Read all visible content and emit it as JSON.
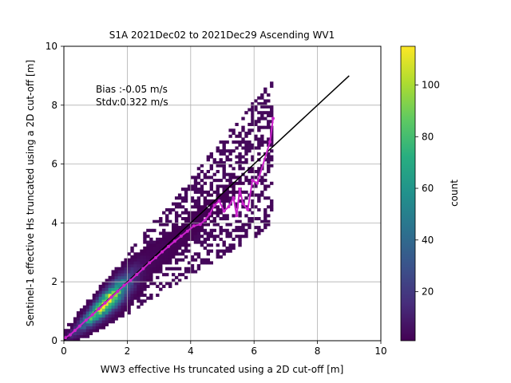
{
  "chart_data": {
    "type": "heatmap",
    "title": "S1A 2021Dec02 to 2021Dec29 Ascending WV1",
    "xlabel": "WW3 effective Hs truncated using a 2D cut-off [m]",
    "ylabel": "Sentinel-1 effective Hs truncated using a 2D cut-off [m]",
    "xlim": [
      0,
      10
    ],
    "ylim": [
      0,
      10
    ],
    "xticks": [
      "0",
      "2",
      "4",
      "6",
      "8",
      "10"
    ],
    "yticks": [
      "0",
      "2",
      "4",
      "6",
      "8",
      "10"
    ],
    "grid": true,
    "annotations": [
      "Bias :-0.05 m/s",
      "Stdv:0.322 m/s"
    ],
    "colorbar": {
      "label": "count",
      "range": [
        1,
        115
      ],
      "ticks": [
        "20",
        "40",
        "60",
        "80",
        "100"
      ],
      "colormap": "viridis"
    },
    "identity_line": {
      "x": [
        0,
        9
      ],
      "y": [
        0,
        9
      ],
      "color": "#000000"
    },
    "binned_mean": {
      "color": "#cc22cc",
      "x": [
        0.05,
        0.2,
        0.35,
        0.5,
        0.7,
        0.9,
        1.1,
        1.3,
        1.5,
        1.7,
        1.9,
        2.1,
        2.3,
        2.5,
        2.7,
        2.9,
        3.1,
        3.3,
        3.5,
        3.7,
        3.9,
        4.1,
        4.3,
        4.45,
        4.6,
        4.75,
        4.9,
        5.05,
        5.2,
        5.35,
        5.45,
        5.55,
        5.65,
        5.8,
        5.95,
        6.1,
        6.5,
        6.6
      ],
      "y": [
        0.1,
        0.2,
        0.35,
        0.5,
        0.7,
        0.88,
        1.08,
        1.28,
        1.48,
        1.68,
        1.88,
        2.05,
        2.25,
        2.45,
        2.65,
        2.82,
        3.02,
        3.2,
        3.38,
        3.55,
        3.72,
        3.9,
        3.95,
        4.1,
        4.3,
        4.6,
        4.75,
        4.4,
        4.55,
        4.85,
        4.25,
        5.15,
        4.65,
        4.45,
        5.45,
        5.35,
        6.75,
        7.55
      ]
    },
    "density_model": {
      "peak_x": 1.3,
      "peak_y": 1.25,
      "peak_count": 115,
      "max_x": 6.6
    }
  }
}
